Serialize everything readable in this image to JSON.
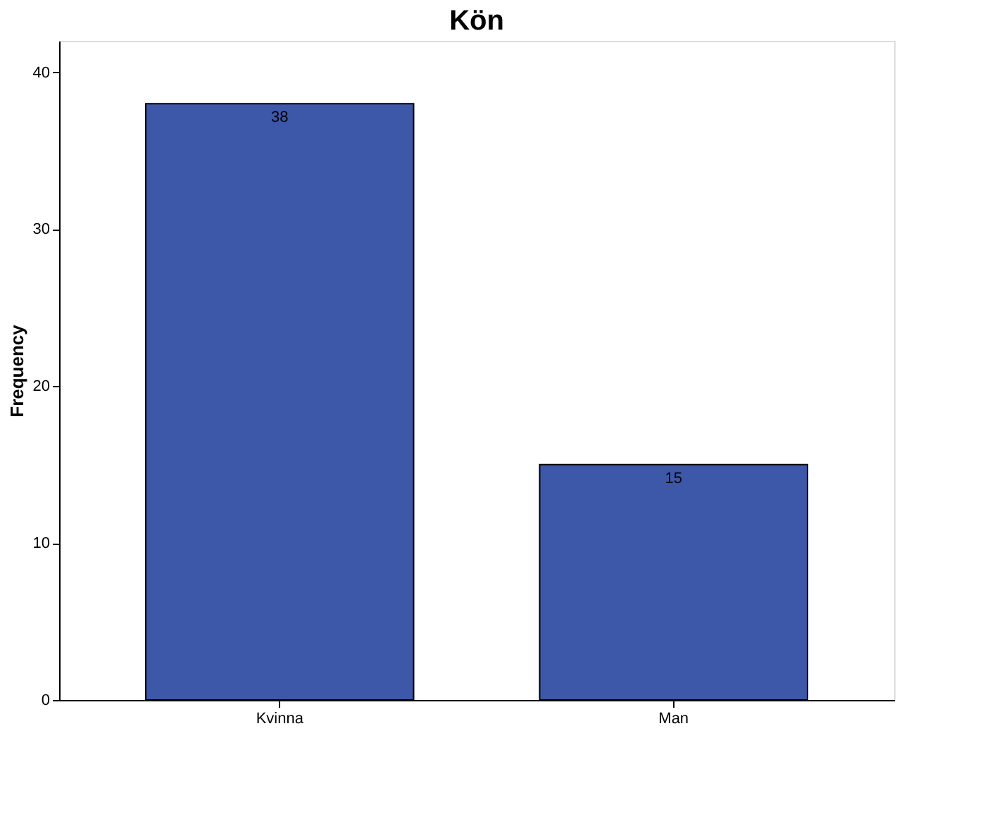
{
  "chart_data": {
    "type": "bar",
    "title": "Kön",
    "ylabel": "Frequency",
    "categories": [
      "Kvinna",
      "Man"
    ],
    "values": [
      38,
      15
    ],
    "color": "#3d58a8",
    "ylim": [
      0,
      42
    ],
    "yticks": [
      0,
      10,
      20,
      30,
      40
    ],
    "grid": false,
    "data_labels": true
  }
}
